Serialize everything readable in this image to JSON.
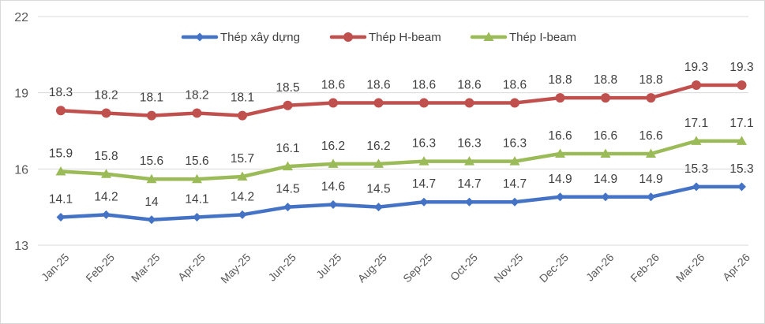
{
  "chart_data": {
    "type": "line",
    "title": "",
    "xlabel": "",
    "ylabel": "",
    "ylim": [
      13,
      22
    ],
    "yticks": [
      13,
      16,
      19,
      22
    ],
    "grid": true,
    "legend": "top-center",
    "categories": [
      "Jan-25",
      "Feb-25",
      "Mar-25",
      "Apr-25",
      "May-25",
      "Jun-25",
      "Jul-25",
      "Aug-25",
      "Sep-25",
      "Oct-25",
      "Nov-25",
      "Dec-25",
      "Jan-26",
      "Feb-26",
      "Mar-26",
      "Apr-26"
    ],
    "series": [
      {
        "name": "Thép xây dựng",
        "color": "#4472c4",
        "marker": "diamond",
        "values": [
          14.1,
          14.2,
          14,
          14.1,
          14.2,
          14.5,
          14.6,
          14.5,
          14.7,
          14.7,
          14.7,
          14.9,
          14.9,
          14.9,
          15.3,
          15.3
        ]
      },
      {
        "name": "Thép H-beam",
        "color": "#c0504d",
        "marker": "circle",
        "values": [
          18.3,
          18.2,
          18.1,
          18.2,
          18.1,
          18.5,
          18.6,
          18.6,
          18.6,
          18.6,
          18.6,
          18.8,
          18.8,
          18.8,
          19.3,
          19.3
        ]
      },
      {
        "name": "Thép I-beam",
        "color": "#9bbb59",
        "marker": "triangle",
        "values": [
          15.9,
          15.8,
          15.6,
          15.6,
          15.7,
          16.1,
          16.2,
          16.2,
          16.3,
          16.3,
          16.3,
          16.6,
          16.6,
          16.6,
          17.1,
          17.1
        ]
      }
    ]
  }
}
